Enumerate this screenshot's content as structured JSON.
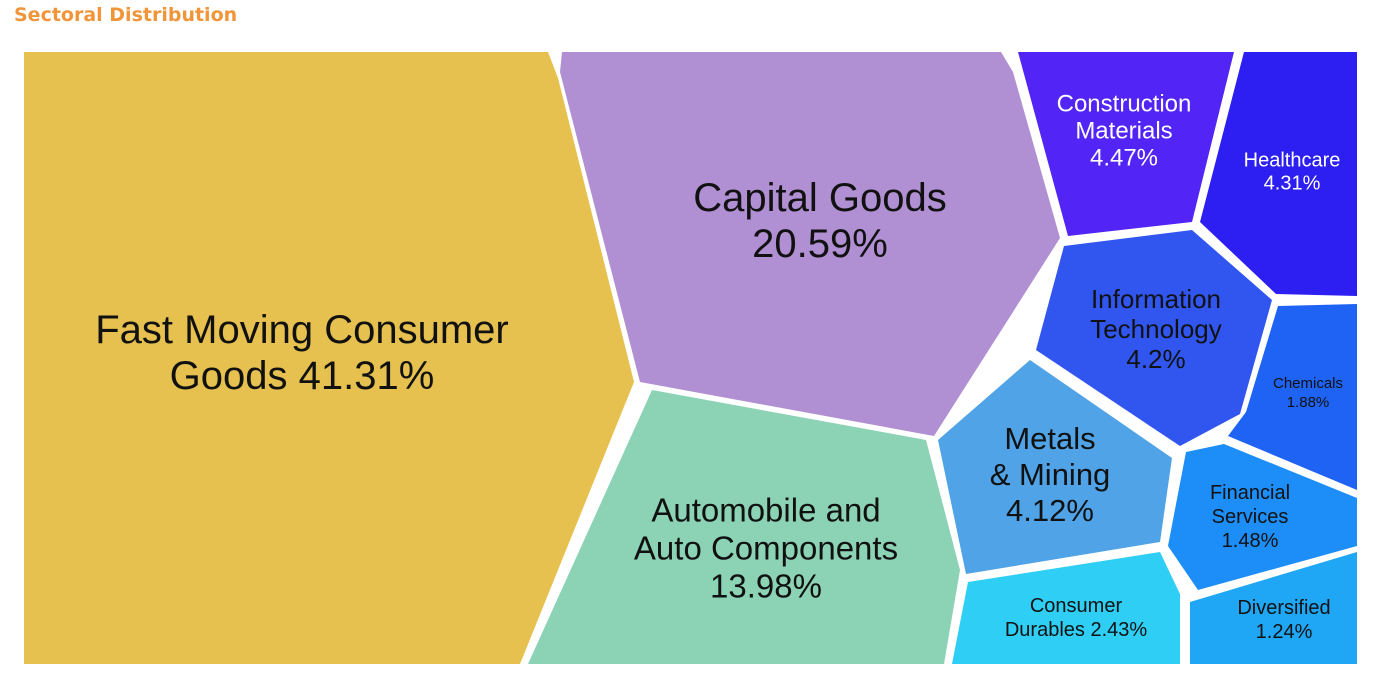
{
  "title": "Sectoral Distribution",
  "chart_data": {
    "type": "voronoi-treemap",
    "title": "Sectoral Distribution",
    "unit": "%",
    "series": [
      {
        "name": "Fast Moving Consumer Goods",
        "label_lines": [
          "Fast Moving Consumer",
          "Goods 41.31%"
        ],
        "value": 41.31,
        "color": "#e6c14f",
        "text_color": "#111111"
      },
      {
        "name": "Capital Goods",
        "label_lines": [
          "Capital Goods",
          "20.59%"
        ],
        "value": 20.59,
        "color": "#b08fd2",
        "text_color": "#111111"
      },
      {
        "name": "Automobile and Auto Components",
        "label_lines": [
          "Automobile and",
          "Auto Components",
          "13.98%"
        ],
        "value": 13.98,
        "color": "#8bd3b4",
        "text_color": "#111111"
      },
      {
        "name": "Construction Materials",
        "label_lines": [
          "Construction",
          "Materials",
          "4.47%"
        ],
        "value": 4.47,
        "color": "#5224f5",
        "text_color": "#ffffff"
      },
      {
        "name": "Healthcare",
        "label_lines": [
          "Healthcare",
          "4.31%"
        ],
        "value": 4.31,
        "color": "#2d1ef2",
        "text_color": "#ffffff"
      },
      {
        "name": "Information Technology",
        "label_lines": [
          "Information",
          "Technology",
          "4.2%"
        ],
        "value": 4.2,
        "color": "#3056ef",
        "text_color": "#111111"
      },
      {
        "name": "Metals & Mining",
        "label_lines": [
          "Metals",
          "& Mining",
          "4.12%"
        ],
        "value": 4.12,
        "color": "#4fa3e6",
        "text_color": "#111111"
      },
      {
        "name": "Consumer Durables",
        "label_lines": [
          "Consumer",
          "Durables 2.43%"
        ],
        "value": 2.43,
        "color": "#2fcef5",
        "text_color": "#111111"
      },
      {
        "name": "Chemicals",
        "label_lines": [
          "Chemicals",
          "1.88%"
        ],
        "value": 1.88,
        "color": "#1f63f4",
        "text_color": "#111111"
      },
      {
        "name": "Financial Services",
        "label_lines": [
          "Financial",
          "Services",
          "1.48%"
        ],
        "value": 1.48,
        "color": "#1d8ef8",
        "text_color": "#111111"
      },
      {
        "name": "Diversified",
        "label_lines": [
          "Diversified",
          "1.24%"
        ],
        "value": 1.24,
        "color": "#1fa7f6",
        "text_color": "#111111"
      }
    ]
  }
}
